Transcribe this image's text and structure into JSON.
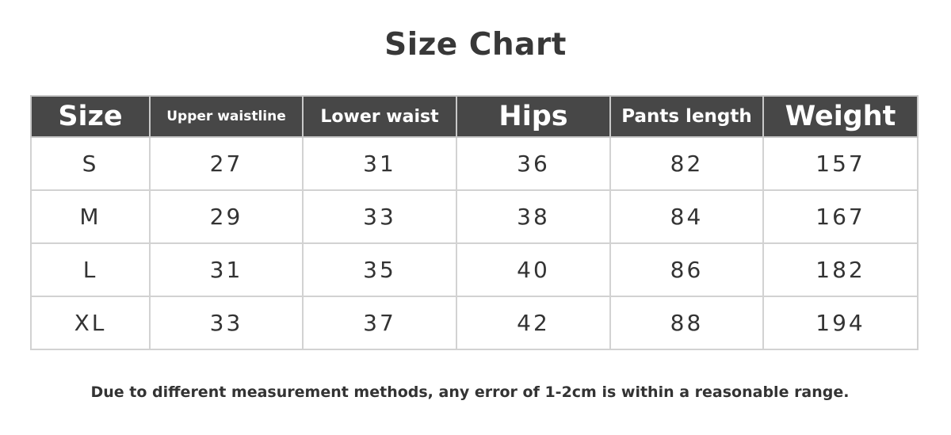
{
  "title": "Size Chart",
  "table": {
    "headers": [
      "Size",
      "Upper waistline",
      "Lower waist",
      "Hips",
      "Pants length",
      "Weight"
    ],
    "rows": [
      [
        "S",
        "27",
        "31",
        "36",
        "82",
        "157"
      ],
      [
        "M",
        "29",
        "33",
        "38",
        "84",
        "167"
      ],
      [
        "L",
        "31",
        "35",
        "40",
        "86",
        "182"
      ],
      [
        "XL",
        "33",
        "37",
        "42",
        "88",
        "194"
      ]
    ]
  },
  "note": "Due to different measurement methods, any error of 1-2cm is within a reasonable range.",
  "colors": {
    "header_bg": "#474747",
    "border": "#d2d2d2"
  }
}
